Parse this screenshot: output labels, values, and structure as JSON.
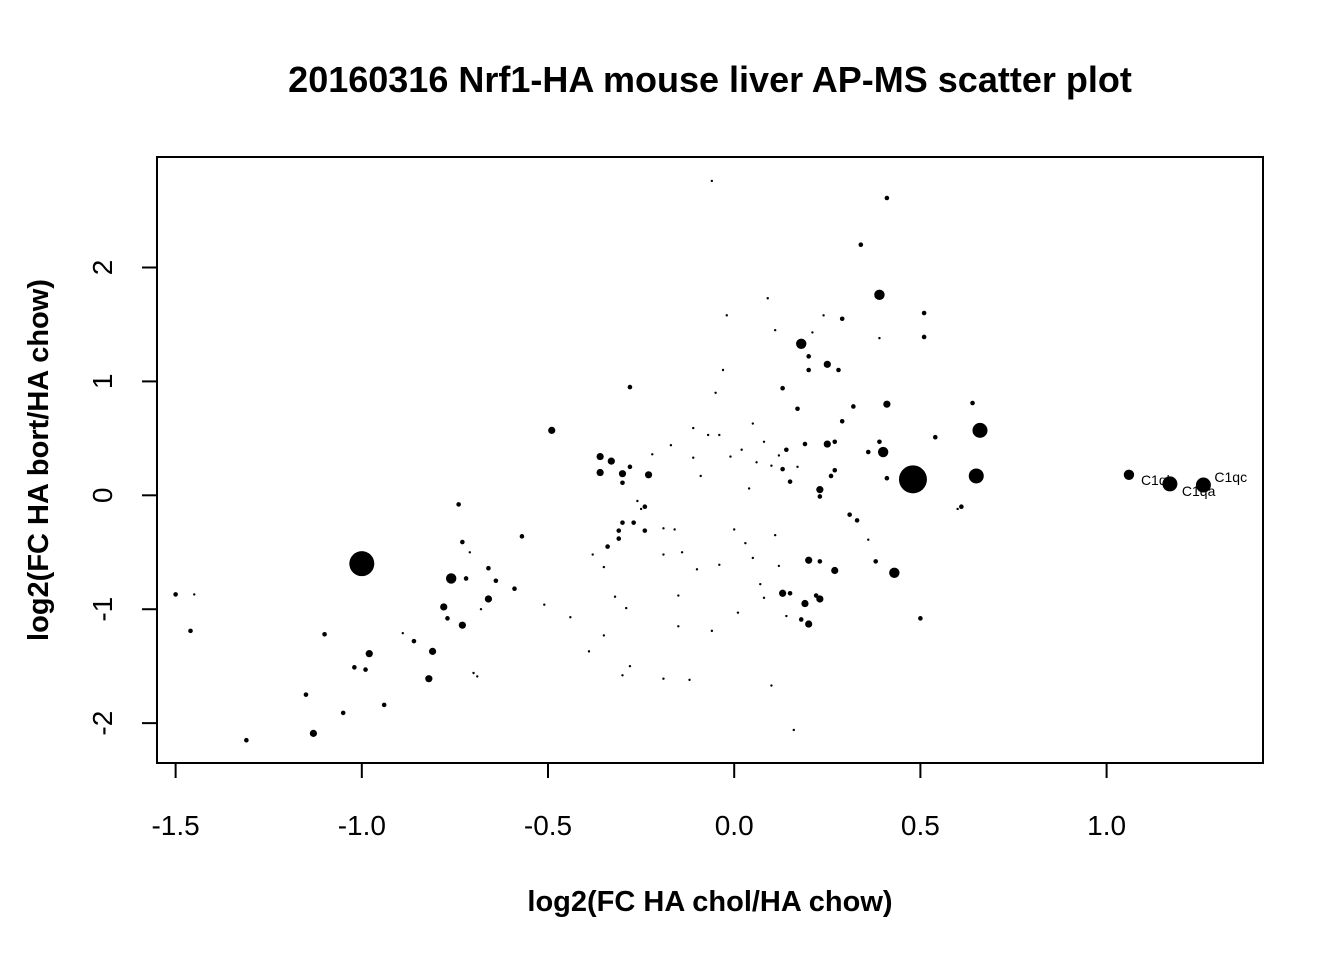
{
  "chart_data": {
    "type": "scatter",
    "title": "20160316 Nrf1-HA mouse liver AP-MS scatter plot",
    "xlabel": "log2(FC HA chol/HA chow)",
    "ylabel": "log2(FC HA bort/HA chow)",
    "xlim": [
      -1.55,
      1.42
    ],
    "ylim": [
      -2.35,
      2.97
    ],
    "xticks": [
      -1.5,
      -1.0,
      -0.5,
      0.0,
      0.5,
      1.0
    ],
    "xtick_labels": [
      "-1.5",
      "-1.0",
      "-0.5",
      "0.0",
      "0.5",
      "1.0"
    ],
    "yticks": [
      -2,
      -1,
      0,
      1,
      2
    ],
    "ytick_labels": [
      "-2",
      "-1",
      "0",
      "1",
      "2"
    ],
    "grid": false,
    "legend": "none",
    "point_color": "#000000",
    "note_size": "marker size varies per point (s = relative size)",
    "points": [
      {
        "x": -1.5,
        "y": -0.87,
        "s": 2
      },
      {
        "x": -1.46,
        "y": -1.19,
        "s": 2
      },
      {
        "x": -1.45,
        "y": -0.87,
        "s": 1
      },
      {
        "x": -1.31,
        "y": -2.15,
        "s": 2
      },
      {
        "x": -1.15,
        "y": -1.75,
        "s": 2
      },
      {
        "x": -1.13,
        "y": -2.09,
        "s": 3
      },
      {
        "x": -1.1,
        "y": -1.22,
        "s": 2
      },
      {
        "x": -1.05,
        "y": -1.91,
        "s": 2
      },
      {
        "x": -1.02,
        "y": -1.51,
        "s": 2
      },
      {
        "x": -1.0,
        "y": -0.6,
        "s": 7
      },
      {
        "x": -0.99,
        "y": -1.53,
        "s": 2
      },
      {
        "x": -0.98,
        "y": -1.39,
        "s": 3
      },
      {
        "x": -0.94,
        "y": -1.84,
        "s": 2
      },
      {
        "x": -0.89,
        "y": -1.21,
        "s": 1
      },
      {
        "x": -0.86,
        "y": -1.28,
        "s": 2
      },
      {
        "x": -0.82,
        "y": -1.61,
        "s": 3
      },
      {
        "x": -0.81,
        "y": -1.37,
        "s": 3
      },
      {
        "x": -0.78,
        "y": -0.98,
        "s": 3
      },
      {
        "x": -0.77,
        "y": -1.08,
        "s": 2
      },
      {
        "x": -0.76,
        "y": -0.73,
        "s": 4
      },
      {
        "x": -0.74,
        "y": -0.08,
        "s": 2
      },
      {
        "x": -0.73,
        "y": -1.14,
        "s": 3
      },
      {
        "x": -0.73,
        "y": -0.41,
        "s": 2
      },
      {
        "x": -0.72,
        "y": -0.73,
        "s": 2
      },
      {
        "x": -0.71,
        "y": -0.5,
        "s": 1
      },
      {
        "x": -0.7,
        "y": -1.56,
        "s": 1
      },
      {
        "x": -0.69,
        "y": -1.59,
        "s": 1
      },
      {
        "x": -0.68,
        "y": -1.0,
        "s": 1
      },
      {
        "x": -0.66,
        "y": -0.64,
        "s": 2
      },
      {
        "x": -0.66,
        "y": -0.91,
        "s": 3
      },
      {
        "x": -0.64,
        "y": -0.75,
        "s": 2
      },
      {
        "x": -0.59,
        "y": -0.82,
        "s": 2
      },
      {
        "x": -0.57,
        "y": -0.36,
        "s": 2
      },
      {
        "x": -0.51,
        "y": -0.96,
        "s": 1
      },
      {
        "x": -0.49,
        "y": 0.57,
        "s": 3
      },
      {
        "x": -0.44,
        "y": -1.07,
        "s": 1
      },
      {
        "x": -0.39,
        "y": -1.37,
        "s": 1
      },
      {
        "x": -0.38,
        "y": -0.52,
        "s": 1
      },
      {
        "x": -0.36,
        "y": 0.34,
        "s": 3
      },
      {
        "x": -0.36,
        "y": 0.2,
        "s": 3
      },
      {
        "x": -0.35,
        "y": -1.23,
        "s": 1
      },
      {
        "x": -0.35,
        "y": -0.63,
        "s": 1
      },
      {
        "x": -0.34,
        "y": -0.45,
        "s": 2
      },
      {
        "x": -0.33,
        "y": 0.3,
        "s": 3
      },
      {
        "x": -0.32,
        "y": -0.89,
        "s": 1
      },
      {
        "x": -0.31,
        "y": -0.31,
        "s": 2
      },
      {
        "x": -0.31,
        "y": -0.38,
        "s": 2
      },
      {
        "x": -0.3,
        "y": -0.24,
        "s": 2
      },
      {
        "x": -0.3,
        "y": 0.19,
        "s": 3
      },
      {
        "x": -0.3,
        "y": 0.11,
        "s": 2
      },
      {
        "x": -0.3,
        "y": -1.58,
        "s": 1
      },
      {
        "x": -0.29,
        "y": -0.99,
        "s": 1
      },
      {
        "x": -0.28,
        "y": 0.95,
        "s": 2
      },
      {
        "x": -0.28,
        "y": 0.25,
        "s": 2
      },
      {
        "x": -0.28,
        "y": -1.5,
        "s": 1
      },
      {
        "x": -0.27,
        "y": -0.24,
        "s": 2
      },
      {
        "x": -0.26,
        "y": -0.05,
        "s": 1
      },
      {
        "x": -0.25,
        "y": -0.12,
        "s": 1
      },
      {
        "x": -0.24,
        "y": -0.31,
        "s": 2
      },
      {
        "x": -0.24,
        "y": -0.1,
        "s": 2
      },
      {
        "x": -0.23,
        "y": 0.18,
        "s": 3
      },
      {
        "x": -0.22,
        "y": 0.36,
        "s": 1
      },
      {
        "x": -0.19,
        "y": -0.29,
        "s": 1
      },
      {
        "x": -0.19,
        "y": -0.52,
        "s": 1
      },
      {
        "x": -0.19,
        "y": -1.61,
        "s": 1
      },
      {
        "x": -0.17,
        "y": 0.44,
        "s": 1
      },
      {
        "x": -0.16,
        "y": -0.3,
        "s": 1
      },
      {
        "x": -0.15,
        "y": -0.88,
        "s": 1
      },
      {
        "x": -0.15,
        "y": -1.15,
        "s": 1
      },
      {
        "x": -0.14,
        "y": -0.5,
        "s": 1
      },
      {
        "x": -0.12,
        "y": -1.62,
        "s": 1
      },
      {
        "x": -0.11,
        "y": 0.33,
        "s": 1
      },
      {
        "x": -0.11,
        "y": 0.59,
        "s": 1
      },
      {
        "x": -0.1,
        "y": -0.65,
        "s": 1
      },
      {
        "x": -0.09,
        "y": 0.17,
        "s": 1
      },
      {
        "x": -0.07,
        "y": 0.53,
        "s": 1
      },
      {
        "x": -0.06,
        "y": -1.19,
        "s": 1
      },
      {
        "x": -0.06,
        "y": 2.76,
        "s": 1
      },
      {
        "x": -0.05,
        "y": 0.9,
        "s": 1
      },
      {
        "x": -0.04,
        "y": 0.53,
        "s": 1
      },
      {
        "x": -0.04,
        "y": -0.61,
        "s": 1
      },
      {
        "x": -0.03,
        "y": 1.1,
        "s": 1
      },
      {
        "x": -0.02,
        "y": 1.58,
        "s": 1
      },
      {
        "x": -0.01,
        "y": 0.34,
        "s": 1
      },
      {
        "x": 0.0,
        "y": -0.3,
        "s": 1
      },
      {
        "x": 0.01,
        "y": -1.03,
        "s": 1
      },
      {
        "x": 0.02,
        "y": 0.4,
        "s": 1
      },
      {
        "x": 0.03,
        "y": -0.42,
        "s": 1
      },
      {
        "x": 0.04,
        "y": 0.06,
        "s": 1
      },
      {
        "x": 0.05,
        "y": -0.55,
        "s": 1
      },
      {
        "x": 0.05,
        "y": 0.63,
        "s": 1
      },
      {
        "x": 0.06,
        "y": 0.29,
        "s": 1
      },
      {
        "x": 0.07,
        "y": -0.78,
        "s": 1
      },
      {
        "x": 0.08,
        "y": 0.47,
        "s": 1
      },
      {
        "x": 0.08,
        "y": -0.9,
        "s": 1
      },
      {
        "x": 0.09,
        "y": 1.73,
        "s": 1
      },
      {
        "x": 0.1,
        "y": 0.26,
        "s": 1
      },
      {
        "x": 0.1,
        "y": -1.67,
        "s": 1
      },
      {
        "x": 0.11,
        "y": 1.45,
        "s": 1
      },
      {
        "x": 0.11,
        "y": -0.35,
        "s": 1
      },
      {
        "x": 0.12,
        "y": 0.35,
        "s": 1
      },
      {
        "x": 0.12,
        "y": -0.62,
        "s": 1
      },
      {
        "x": 0.13,
        "y": 0.23,
        "s": 2
      },
      {
        "x": 0.13,
        "y": 0.94,
        "s": 2
      },
      {
        "x": 0.13,
        "y": -0.86,
        "s": 3
      },
      {
        "x": 0.14,
        "y": 0.4,
        "s": 2
      },
      {
        "x": 0.14,
        "y": -1.06,
        "s": 1
      },
      {
        "x": 0.15,
        "y": 0.12,
        "s": 2
      },
      {
        "x": 0.15,
        "y": -0.86,
        "s": 2
      },
      {
        "x": 0.16,
        "y": -2.06,
        "s": 1
      },
      {
        "x": 0.17,
        "y": 0.25,
        "s": 1
      },
      {
        "x": 0.17,
        "y": 0.76,
        "s": 2
      },
      {
        "x": 0.18,
        "y": 1.33,
        "s": 4
      },
      {
        "x": 0.18,
        "y": -1.09,
        "s": 2
      },
      {
        "x": 0.19,
        "y": 0.45,
        "s": 2
      },
      {
        "x": 0.19,
        "y": -0.95,
        "s": 3
      },
      {
        "x": 0.2,
        "y": 1.22,
        "s": 2
      },
      {
        "x": 0.2,
        "y": 1.1,
        "s": 2
      },
      {
        "x": 0.2,
        "y": -1.13,
        "s": 3
      },
      {
        "x": 0.2,
        "y": -0.57,
        "s": 3
      },
      {
        "x": 0.21,
        "y": 1.43,
        "s": 1
      },
      {
        "x": 0.22,
        "y": -0.88,
        "s": 2
      },
      {
        "x": 0.23,
        "y": 0.05,
        "s": 3
      },
      {
        "x": 0.23,
        "y": -0.01,
        "s": 2
      },
      {
        "x": 0.23,
        "y": -0.91,
        "s": 3
      },
      {
        "x": 0.23,
        "y": -0.58,
        "s": 2
      },
      {
        "x": 0.24,
        "y": 1.58,
        "s": 1
      },
      {
        "x": 0.25,
        "y": 0.45,
        "s": 3
      },
      {
        "x": 0.25,
        "y": 1.15,
        "s": 3
      },
      {
        "x": 0.26,
        "y": 0.17,
        "s": 2
      },
      {
        "x": 0.27,
        "y": 0.22,
        "s": 2
      },
      {
        "x": 0.27,
        "y": 0.47,
        "s": 2
      },
      {
        "x": 0.27,
        "y": -0.66,
        "s": 3
      },
      {
        "x": 0.28,
        "y": 1.1,
        "s": 2
      },
      {
        "x": 0.29,
        "y": 1.55,
        "s": 2
      },
      {
        "x": 0.29,
        "y": 0.65,
        "s": 2
      },
      {
        "x": 0.31,
        "y": -0.17,
        "s": 2
      },
      {
        "x": 0.32,
        "y": 0.78,
        "s": 2
      },
      {
        "x": 0.33,
        "y": -0.22,
        "s": 2
      },
      {
        "x": 0.34,
        "y": 2.2,
        "s": 2
      },
      {
        "x": 0.36,
        "y": 0.38,
        "s": 2
      },
      {
        "x": 0.36,
        "y": -0.39,
        "s": 1
      },
      {
        "x": 0.38,
        "y": -0.58,
        "s": 2
      },
      {
        "x": 0.39,
        "y": 1.76,
        "s": 4
      },
      {
        "x": 0.39,
        "y": 0.47,
        "s": 2
      },
      {
        "x": 0.39,
        "y": 1.38,
        "s": 1
      },
      {
        "x": 0.4,
        "y": 0.38,
        "s": 4
      },
      {
        "x": 0.41,
        "y": 0.8,
        "s": 3
      },
      {
        "x": 0.41,
        "y": 2.61,
        "s": 2
      },
      {
        "x": 0.41,
        "y": 0.15,
        "s": 2
      },
      {
        "x": 0.43,
        "y": -0.68,
        "s": 4
      },
      {
        "x": 0.46,
        "y": 0.1,
        "s": 3
      },
      {
        "x": 0.48,
        "y": 0.14,
        "s": 8
      },
      {
        "x": 0.5,
        "y": -1.08,
        "s": 2
      },
      {
        "x": 0.51,
        "y": 1.6,
        "s": 2
      },
      {
        "x": 0.51,
        "y": 1.39,
        "s": 2
      },
      {
        "x": 0.54,
        "y": 0.51,
        "s": 2
      },
      {
        "x": 0.6,
        "y": -0.12,
        "s": 1
      },
      {
        "x": 0.61,
        "y": -0.1,
        "s": 2
      },
      {
        "x": 0.64,
        "y": 0.81,
        "s": 2
      },
      {
        "x": 0.65,
        "y": 0.17,
        "s": 5
      },
      {
        "x": 0.66,
        "y": 0.57,
        "s": 5
      },
      {
        "x": 1.06,
        "y": 0.18,
        "s": 4,
        "label": "C1qb"
      },
      {
        "x": 1.17,
        "y": 0.1,
        "s": 5,
        "label": "C1qa"
      },
      {
        "x": 1.26,
        "y": 0.09,
        "s": 5,
        "label": "C1qc"
      }
    ]
  }
}
